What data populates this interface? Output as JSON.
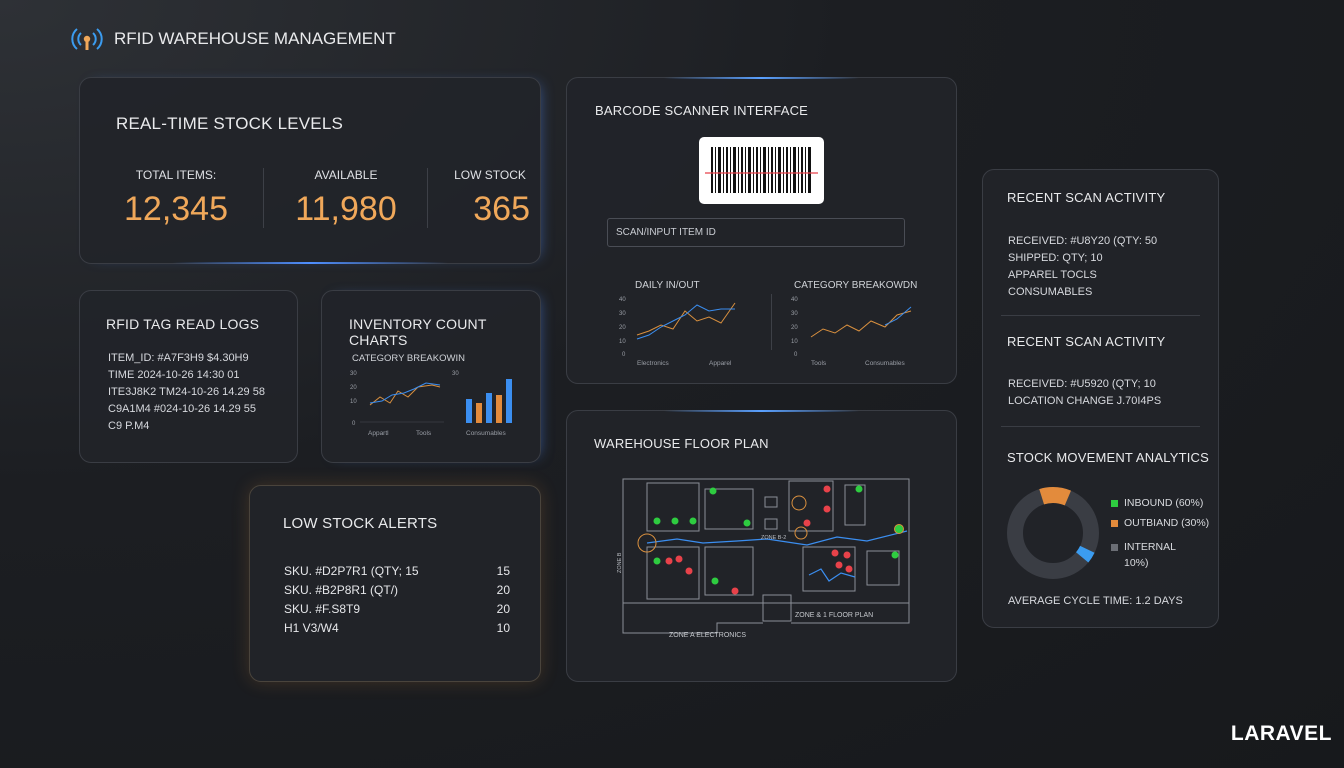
{
  "header": {
    "title": "RFID WAREHOUSE MANAGEMENT",
    "footer_brand": "LARAVEL"
  },
  "stock_levels": {
    "title": "REAL-TIME STOCK LEVELS",
    "total_label": "TOTAL ITEMS:",
    "total_value": "12,345",
    "available_label": "AVAILABLE",
    "available_value": "11,980",
    "low_label": "LOW STOCK",
    "low_value": "365"
  },
  "rfid_logs": {
    "title": "RFID TAG READ LOGS",
    "lines": [
      "ITEM_ID: #A7F3H9 $4.30H9",
      "TIME 2024-10-26 14:30 01",
      "ITE3J8K2 TM24-10-26 14.29 58",
      "C9A1M4 #024-10-26 14.29 55",
      "C9 P.M4"
    ]
  },
  "inventory_charts": {
    "title": "INVENTORY COUNT CHARTS",
    "subtitle": "CATEGORY BREAKOWIN",
    "x_labels": [
      "Appartl",
      "Tools",
      "Consumables"
    ],
    "y_ticks": [
      "30",
      "20",
      "10",
      "0"
    ]
  },
  "low_stock_alerts": {
    "title": "LOW STOCK ALERTS",
    "rows": [
      {
        "sku": "SKU. #D2P7R1 (QTY; 15",
        "qty": "15"
      },
      {
        "sku": "SKU. #B2P8R1 (QT/)",
        "qty": "20"
      },
      {
        "sku": "SKU. #F.S8T9",
        "qty": "20"
      },
      {
        "sku": "H1 V3/W4",
        "qty": "10"
      }
    ]
  },
  "barcode": {
    "title": "BARCODE SCANNER INTERFACE",
    "input_placeholder": "SCAN/INPUT ITEM ID",
    "daily_title": "DAILY IN/OUT",
    "daily_x": [
      "Electronics",
      "Apparel"
    ],
    "daily_y": [
      "40",
      "30",
      "20",
      "10",
      "0"
    ],
    "category_title": "CATEGORY BREAKOWDN",
    "category_x": [
      "Tools",
      "Consumables"
    ],
    "category_y": [
      "40",
      "30",
      "20",
      "10",
      "0"
    ]
  },
  "floor_plan": {
    "title": "WAREHOUSE FLOOR PLAN",
    "zone_bottom": "ZONE A ELECTRONICS",
    "zone_right": "ZONE & 1 FLOOR PLAN",
    "zone_left": "ZONE B",
    "center_label": "ZONE B-2"
  },
  "recent_scan": {
    "title1": "RECENT SCAN ACTIVITY",
    "lines1": [
      "RECEIVED: #U8Y20 (QTY: 50",
      "SHIPPED: QTY; 10",
      "APPAREL TOCLS",
      "CONSUMABLES"
    ],
    "title2": "RECENT SCAN ACTIVITY",
    "lines2": [
      "RECEIVED: #U5920 (QTY; 10",
      "LOCATION CHANGE J.70I4PS"
    ],
    "analytics_title": "STOCK MOVEMENT ANALYTICS",
    "legend": [
      {
        "label": "INBOUND (60%)",
        "color": "#2ecc40"
      },
      {
        "label": "OUTBIAND (30%)",
        "color": "#e38b3c"
      },
      {
        "label": "INTERNAL",
        "color": "#6b6e75"
      }
    ],
    "legend_extra": "10%)",
    "cycle_time": "AVERAGE CYCLE TIME: 1.2 DAYS",
    "donut": {
      "inbound": 60,
      "outbound": 30,
      "internal": 10
    }
  },
  "colors": {
    "accent_orange": "#f0a85a",
    "accent_blue": "#3b8ef0",
    "green": "#2ecc40",
    "red": "#e8424a"
  }
}
